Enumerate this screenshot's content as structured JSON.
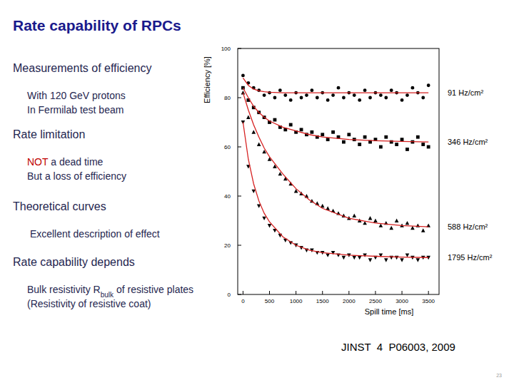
{
  "slide": {
    "title": "Rate capability of RPCs",
    "sections": [
      {
        "heading": "Measurements of efficiency",
        "lines": [
          [
            {
              "text": "With 120 GeV protons"
            }
          ],
          [
            {
              "text": "In Fermilab test beam"
            }
          ]
        ]
      },
      {
        "heading": "Rate limitation",
        "lines": [
          [
            {
              "text": "NOT",
              "color": "#c00000"
            },
            {
              "text": " a dead time"
            }
          ],
          [
            {
              "text": "But a loss of efficiency"
            }
          ]
        ]
      },
      {
        "heading": "Theoretical curves",
        "lines": [
          [
            {
              "text": " Excellent description of effect"
            }
          ]
        ]
      },
      {
        "heading": "Rate capability depends",
        "lines": [
          [
            {
              "text": "Bulk resistivity R"
            },
            {
              "text": "bulk",
              "sub": true
            },
            {
              "text": " of resistive plates"
            }
          ],
          [
            {
              "text": "(Resistivity of resistive coat)"
            }
          ]
        ]
      }
    ],
    "reference": "JINST  4  P06003, 2009",
    "page": "23"
  },
  "chart_data": {
    "type": "scatter",
    "xlabel": "Spill time [ms]",
    "ylabel": "Efficiency [%]",
    "xlim": [
      -100,
      3700
    ],
    "ylim": [
      0,
      100
    ],
    "xticks": [
      0,
      500,
      1000,
      1500,
      2000,
      2500,
      3000,
      3500
    ],
    "yticks": [
      0,
      20,
      40,
      60,
      80,
      100
    ],
    "grid": false,
    "series": [
      {
        "name": "91 Hz/cm²",
        "color": "#000000",
        "marker": "circle",
        "x": [
          0,
          100,
          200,
          300,
          400,
          500,
          600,
          700,
          800,
          900,
          1000,
          1100,
          1200,
          1300,
          1400,
          1500,
          1600,
          1700,
          1800,
          1900,
          2000,
          2100,
          2200,
          2300,
          2400,
          2500,
          2600,
          2700,
          2800,
          2900,
          3000,
          3100,
          3200,
          3300,
          3400,
          3500
        ],
        "values": [
          89,
          86,
          84,
          83,
          81,
          82,
          80,
          83,
          81,
          79,
          82,
          80,
          81,
          83,
          80,
          82,
          79,
          81,
          84,
          80,
          82,
          81,
          79,
          83,
          80,
          82,
          81,
          80,
          83,
          82,
          79,
          81,
          84,
          82,
          80,
          85
        ],
        "fit": {
          "type": "line",
          "color": "#d62020",
          "x": [
            0,
            100,
            200,
            300,
            400,
            500,
            750,
            1000,
            1250,
            1500,
            2000,
            2500,
            3000,
            3500
          ],
          "values": [
            88,
            85,
            83.5,
            82.8,
            82.4,
            82.2,
            82,
            82,
            82,
            82,
            82,
            82,
            82,
            82
          ]
        }
      },
      {
        "name": "346 Hz/cm²",
        "color": "#000000",
        "marker": "square",
        "x": [
          0,
          100,
          200,
          300,
          400,
          500,
          600,
          700,
          800,
          900,
          1000,
          1100,
          1200,
          1300,
          1400,
          1500,
          1600,
          1700,
          1800,
          1900,
          2000,
          2100,
          2200,
          2300,
          2400,
          2500,
          2600,
          2700,
          2800,
          2900,
          3000,
          3100,
          3200,
          3300,
          3400,
          3500
        ],
        "values": [
          84,
          79,
          76,
          74,
          72,
          70,
          71,
          68,
          67,
          69,
          66,
          67,
          65,
          66,
          64,
          65,
          63,
          66,
          64,
          62,
          65,
          63,
          61,
          64,
          62,
          63,
          60,
          64,
          62,
          61,
          63,
          59,
          62,
          64,
          61,
          60
        ],
        "fit": {
          "type": "line",
          "color": "#d62020",
          "x": [
            0,
            100,
            200,
            300,
            400,
            500,
            750,
            1000,
            1250,
            1500,
            2000,
            2500,
            3000,
            3500
          ],
          "values": [
            84,
            80,
            76.5,
            74,
            72,
            70.5,
            68,
            66.5,
            65,
            64,
            63,
            62.5,
            62.2,
            62
          ]
        }
      },
      {
        "name": "588 Hz/cm²",
        "color": "#000000",
        "marker": "triangle",
        "x": [
          0,
          100,
          200,
          300,
          400,
          500,
          600,
          700,
          800,
          900,
          1000,
          1100,
          1200,
          1300,
          1400,
          1500,
          1600,
          1700,
          1800,
          1900,
          2000,
          2100,
          2200,
          2300,
          2400,
          2500,
          2600,
          2700,
          2800,
          2900,
          3000,
          3100,
          3200,
          3300,
          3400,
          3500
        ],
        "values": [
          82,
          72,
          66,
          61,
          58,
          55,
          52,
          49,
          47,
          45,
          42,
          41,
          40,
          38,
          37,
          36,
          35,
          34,
          33,
          32,
          31,
          32,
          30,
          29,
          31,
          30,
          28,
          29,
          27,
          30,
          28,
          29,
          27,
          28,
          26,
          28
        ],
        "fit": {
          "type": "line",
          "color": "#d62020",
          "x": [
            0,
            100,
            200,
            300,
            400,
            500,
            750,
            1000,
            1250,
            1500,
            2000,
            2500,
            3000,
            3500
          ],
          "values": [
            82,
            75,
            69,
            64,
            59.5,
            56,
            49,
            43,
            38.5,
            35,
            31,
            29,
            28,
            27.5
          ]
        }
      },
      {
        "name": "1795 Hz/cm²",
        "color": "#000000",
        "marker": "triangle-down",
        "x": [
          0,
          100,
          200,
          300,
          400,
          500,
          600,
          700,
          800,
          900,
          1000,
          1100,
          1200,
          1300,
          1400,
          1500,
          1600,
          1700,
          1800,
          1900,
          2000,
          2100,
          2200,
          2300,
          2400,
          2500,
          2600,
          2700,
          2800,
          2900,
          3000,
          3100,
          3200,
          3300,
          3400,
          3500
        ],
        "values": [
          70,
          52,
          42,
          36,
          31,
          28,
          26,
          24,
          22,
          21,
          20,
          19,
          18,
          18,
          17,
          17,
          16,
          17,
          16,
          15,
          16,
          15,
          15,
          16,
          14,
          15,
          16,
          14,
          15,
          15,
          14,
          16,
          15,
          14,
          15,
          15
        ],
        "fit": {
          "type": "line",
          "color": "#d62020",
          "x": [
            0,
            100,
            200,
            300,
            400,
            500,
            750,
            1000,
            1250,
            1500,
            2000,
            2500,
            3000,
            3500
          ],
          "values": [
            70,
            55,
            45,
            38,
            33,
            29.5,
            23.5,
            20,
            18,
            17,
            16,
            15.5,
            15.2,
            15
          ]
        }
      }
    ]
  }
}
